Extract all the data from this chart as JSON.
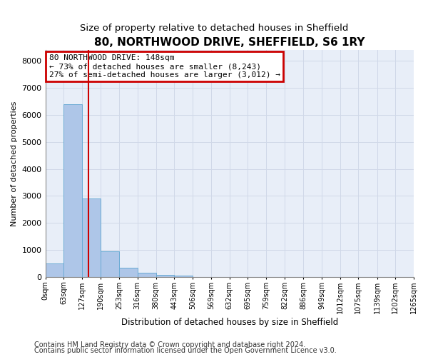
{
  "title": "80, NORTHWOOD DRIVE, SHEFFIELD, S6 1RY",
  "subtitle": "Size of property relative to detached houses in Sheffield",
  "xlabel": "Distribution of detached houses by size in Sheffield",
  "ylabel": "Number of detached properties",
  "bin_edges": [
    0,
    63,
    127,
    190,
    253,
    316,
    380,
    443,
    506,
    569,
    632,
    695,
    759,
    822,
    886,
    949,
    1012,
    1075,
    1139,
    1202,
    1265
  ],
  "bar_heights": [
    500,
    6400,
    2900,
    950,
    330,
    150,
    80,
    50,
    0,
    0,
    0,
    0,
    0,
    0,
    0,
    0,
    0,
    0,
    0,
    0
  ],
  "bar_color": "#aec6e8",
  "bar_edge_color": "#6aaad4",
  "property_line_x": 148,
  "property_line_color": "#cc0000",
  "annotation_line1": "80 NORTHWOOD DRIVE: 148sqm",
  "annotation_line2": "← 73% of detached houses are smaller (8,243)",
  "annotation_line3": "27% of semi-detached houses are larger (3,012) →",
  "annotation_box_color": "#cc0000",
  "annotation_text_color": "#000000",
  "ylim": [
    0,
    8400
  ],
  "yticks": [
    0,
    1000,
    2000,
    3000,
    4000,
    5000,
    6000,
    7000,
    8000
  ],
  "grid_color": "#d0d8e8",
  "background_color": "#e8eef8",
  "footer_line1": "Contains HM Land Registry data © Crown copyright and database right 2024.",
  "footer_line2": "Contains public sector information licensed under the Open Government Licence v3.0.",
  "title_fontsize": 11,
  "subtitle_fontsize": 9.5,
  "tick_label_fontsize": 7,
  "ylabel_fontsize": 8,
  "xlabel_fontsize": 8.5
}
